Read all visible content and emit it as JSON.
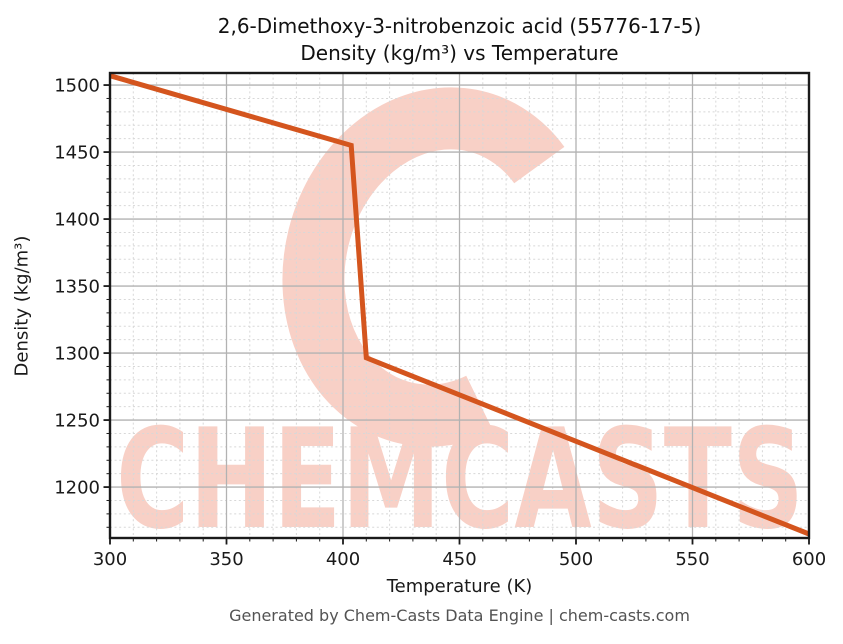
{
  "header": {
    "title_line1": "2,6-Dimethoxy-3-nitrobenzoic acid (55776-17-5)",
    "title_line2": "Density (kg/m³) vs Temperature"
  },
  "watermark": {
    "text": "CHEMCASTS",
    "color": "#f8d0c6"
  },
  "footer": {
    "text": "Generated by Chem-Casts Data Engine | chem-casts.com"
  },
  "chart_data": {
    "type": "line",
    "title": "2,6-Dimethoxy-3-nitrobenzoic acid (55776-17-5) Density (kg/m³) vs Temperature",
    "xlabel": "Temperature (K)",
    "ylabel": "Density (kg/m³)",
    "xlim": [
      300,
      600
    ],
    "ylim": [
      1162,
      1509
    ],
    "x_ticks": [
      300,
      350,
      400,
      450,
      500,
      550,
      600
    ],
    "y_ticks": [
      1200,
      1250,
      1300,
      1350,
      1400,
      1450,
      1500
    ],
    "x_minor_step": 10,
    "y_minor_step": 10,
    "grid": "major solid + minor dashed",
    "legend_position": "none",
    "series": [
      {
        "name": "Density (kg/m³)",
        "color": "#d4551e",
        "linewidth": 5,
        "points": [
          [
            300,
            1507
          ],
          [
            403.5,
            1455
          ],
          [
            410,
            1296.5
          ],
          [
            600,
            1165
          ]
        ]
      }
    ],
    "annotations": {
      "solid_phase_end_K": 403.5,
      "liquid_phase_start_K": 410
    },
    "colors": {
      "spine": "#1a1a1a",
      "major_grid": "#b2b2b2",
      "minor_grid": "#d8d8d8",
      "tick_label": "#1a1a1a"
    }
  }
}
